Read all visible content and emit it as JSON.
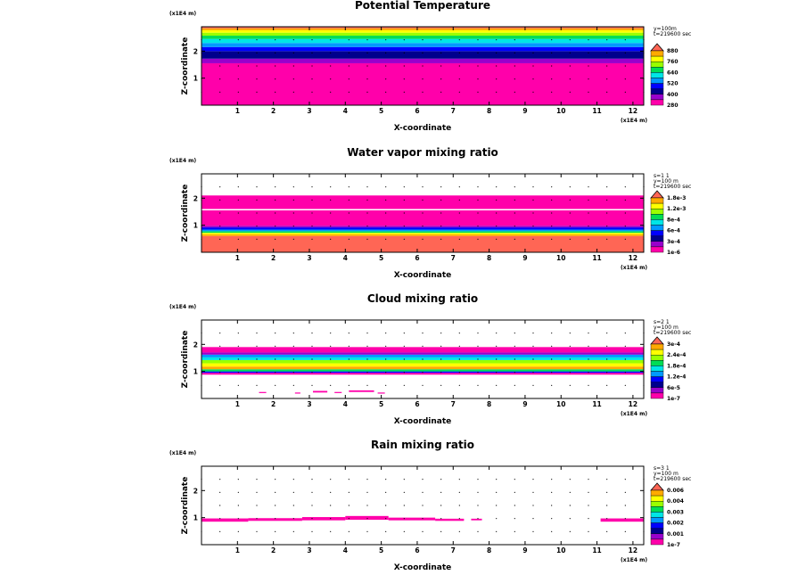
{
  "colors": {
    "magenta": "#ff00aa",
    "purple": "#9900cc",
    "navy": "#00008c",
    "blue": "#0000ff",
    "lightblue": "#0099ff",
    "cyan": "#00e6e6",
    "green": "#00dd55",
    "lime": "#99ff00",
    "yellow": "#ffff00",
    "orange": "#ffaa00",
    "salmon": "#ff6655"
  },
  "chart_data": [
    {
      "type": "heatmap",
      "title": "Potential Temperature",
      "xlabel": "X-coordinate",
      "ylabel": "Z-coordinate",
      "x_unit": "(x1E4 m)",
      "y_unit": "(x1E4 m)",
      "x_ticks": [
        "1",
        "2",
        "3",
        "4",
        "5",
        "6",
        "7",
        "8",
        "9",
        "10",
        "11",
        "12"
      ],
      "y_ticks": [
        "1",
        "2"
      ],
      "xlim": [
        0,
        12.3
      ],
      "ylim": [
        0,
        2.9
      ],
      "annotation": [
        "y=100m",
        "t=219600 sec"
      ],
      "legend_levels": [
        "880",
        "760",
        "640",
        "520",
        "400",
        "280"
      ],
      "legend_colors": [
        "#ff6655",
        "#ffaa00",
        "#ffff00",
        "#99ff00",
        "#00dd55",
        "#00e6e6",
        "#0099ff",
        "#0000ff",
        "#00008c",
        "#9900cc",
        "#ff00aa"
      ],
      "bands": [
        {
          "z0": 0.0,
          "z1": 1.55,
          "color": "#ff00aa"
        },
        {
          "z0": 1.55,
          "z1": 1.72,
          "color": "#9900cc"
        },
        {
          "z0": 1.72,
          "z1": 2.0,
          "color": "#00008c"
        },
        {
          "z0": 2.0,
          "z1": 2.15,
          "color": "#0000ff"
        },
        {
          "z0": 2.15,
          "z1": 2.3,
          "color": "#0099ff"
        },
        {
          "z0": 2.3,
          "z1": 2.45,
          "color": "#00e6e6"
        },
        {
          "z0": 2.45,
          "z1": 2.57,
          "color": "#00dd55"
        },
        {
          "z0": 2.57,
          "z1": 2.68,
          "color": "#99ff00"
        },
        {
          "z0": 2.68,
          "z1": 2.77,
          "color": "#ffff00"
        },
        {
          "z0": 2.77,
          "z1": 2.84,
          "color": "#ffaa00"
        },
        {
          "z0": 2.84,
          "z1": 2.9,
          "color": "#ff6655"
        }
      ]
    },
    {
      "type": "heatmap",
      "title": "Water vapor mixing ratio",
      "xlabel": "X-coordinate",
      "ylabel": "Z-coordinate",
      "x_unit": "(x1E4 m)",
      "y_unit": "(x1E4 m)",
      "x_ticks": [
        "1",
        "2",
        "3",
        "4",
        "5",
        "6",
        "7",
        "8",
        "9",
        "10",
        "11",
        "12"
      ],
      "y_ticks": [
        "1",
        "2"
      ],
      "xlim": [
        0,
        12.3
      ],
      "ylim": [
        0,
        2.9
      ],
      "annotation": [
        "s=1 1",
        "y=100 m",
        "t=219600 sec"
      ],
      "legend_levels": [
        "1.8e-3",
        "1.2e-3",
        "8e-4",
        "6e-4",
        "3e-4",
        "1e-6"
      ],
      "legend_colors": [
        "#ff6655",
        "#ffaa00",
        "#ffff00",
        "#99ff00",
        "#00dd55",
        "#00e6e6",
        "#0099ff",
        "#0000ff",
        "#00008c",
        "#9900cc",
        "#ff00aa"
      ],
      "bands": [
        {
          "z0": 0.0,
          "z1": 0.6,
          "color": "#ff6655"
        },
        {
          "z0": 0.6,
          "z1": 0.66,
          "color": "#ffaa00"
        },
        {
          "z0": 0.66,
          "z1": 0.72,
          "color": "#ffff00"
        },
        {
          "z0": 0.72,
          "z1": 0.78,
          "color": "#00dd55"
        },
        {
          "z0": 0.78,
          "z1": 0.84,
          "color": "#0099ff"
        },
        {
          "z0": 0.84,
          "z1": 0.92,
          "color": "#0000ff"
        },
        {
          "z0": 0.92,
          "z1": 0.98,
          "color": "#9900cc"
        },
        {
          "z0": 0.98,
          "z1": 1.55,
          "color": "#ff00aa"
        },
        {
          "z0": 1.55,
          "z1": 1.6,
          "color": "#ffffff"
        },
        {
          "z0": 1.6,
          "z1": 2.1,
          "color": "#ff00aa"
        }
      ]
    },
    {
      "type": "heatmap",
      "title": "Cloud mixing ratio",
      "xlabel": "X-coordinate",
      "ylabel": "Z-coordinate",
      "x_unit": "(x1E4 m)",
      "y_unit": "(x1E4 m)",
      "x_ticks": [
        "1",
        "2",
        "3",
        "4",
        "5",
        "6",
        "7",
        "8",
        "9",
        "10",
        "11",
        "12"
      ],
      "y_ticks": [
        "1",
        "2"
      ],
      "xlim": [
        0,
        12.3
      ],
      "ylim": [
        0,
        2.9
      ],
      "annotation": [
        "s=2 1",
        "y=100 m",
        "t=219600 sec"
      ],
      "legend_levels": [
        "3e-4",
        "2.4e-4",
        "1.8e-4",
        "1.2e-4",
        "6e-5",
        "1e-7"
      ],
      "legend_colors": [
        "#ff6655",
        "#ffaa00",
        "#ffff00",
        "#99ff00",
        "#00dd55",
        "#00e6e6",
        "#0099ff",
        "#0000ff",
        "#00008c",
        "#9900cc",
        "#ff00aa"
      ],
      "bands": [
        {
          "z0": 0.88,
          "z1": 0.95,
          "color": "#ff00aa"
        },
        {
          "z0": 0.95,
          "z1": 1.0,
          "color": "#0000ff"
        },
        {
          "z0": 1.0,
          "z1": 1.08,
          "color": "#00dd55"
        },
        {
          "z0": 1.08,
          "z1": 1.18,
          "color": "#ffaa00"
        },
        {
          "z0": 1.18,
          "z1": 1.3,
          "color": "#ffff00"
        },
        {
          "z0": 1.3,
          "z1": 1.42,
          "color": "#99ff00"
        },
        {
          "z0": 1.42,
          "z1": 1.52,
          "color": "#00e6e6"
        },
        {
          "z0": 1.52,
          "z1": 1.62,
          "color": "#0099ff"
        },
        {
          "z0": 1.62,
          "z1": 1.7,
          "color": "#9900cc"
        },
        {
          "z0": 1.7,
          "z1": 1.9,
          "color": "#ff00aa"
        }
      ],
      "patches": [
        {
          "x": 1.6,
          "z": 0.2,
          "w": 0.2,
          "h": 0.04,
          "color": "#ff00aa"
        },
        {
          "x": 2.6,
          "z": 0.18,
          "w": 0.15,
          "h": 0.04,
          "color": "#ff00aa"
        },
        {
          "x": 3.1,
          "z": 0.22,
          "w": 0.4,
          "h": 0.06,
          "color": "#ff00aa"
        },
        {
          "x": 3.7,
          "z": 0.2,
          "w": 0.2,
          "h": 0.04,
          "color": "#ff00aa"
        },
        {
          "x": 4.1,
          "z": 0.24,
          "w": 0.7,
          "h": 0.06,
          "color": "#ff00aa"
        },
        {
          "x": 4.9,
          "z": 0.18,
          "w": 0.2,
          "h": 0.04,
          "color": "#ff00aa"
        }
      ]
    },
    {
      "type": "heatmap",
      "title": "Rain mixing ratio",
      "xlabel": "X-coordinate",
      "ylabel": "Z-coordinate",
      "x_unit": "(x1E4 m)",
      "y_unit": "(x1E4 m)",
      "x_ticks": [
        "1",
        "2",
        "3",
        "4",
        "5",
        "6",
        "7",
        "8",
        "9",
        "10",
        "11",
        "12"
      ],
      "y_ticks": [
        "1",
        "2"
      ],
      "xlim": [
        0,
        12.3
      ],
      "ylim": [
        0,
        2.9
      ],
      "annotation": [
        "s=3 1",
        "y=100 m",
        "t=219600 sec"
      ],
      "legend_levels": [
        "0.006",
        "0.004",
        "0.003",
        "0.002",
        "0.001",
        "1e-7"
      ],
      "legend_colors": [
        "#ff6655",
        "#ffaa00",
        "#ffff00",
        "#99ff00",
        "#00dd55",
        "#00e6e6",
        "#0099ff",
        "#0000ff",
        "#00008c",
        "#9900cc",
        "#ff00aa"
      ],
      "bands": [],
      "patches": [
        {
          "x": 0.0,
          "z": 0.85,
          "w": 1.3,
          "h": 0.12,
          "color": "#ff00aa"
        },
        {
          "x": 1.3,
          "z": 0.88,
          "w": 1.5,
          "h": 0.1,
          "color": "#ff00aa"
        },
        {
          "x": 2.8,
          "z": 0.9,
          "w": 1.2,
          "h": 0.12,
          "color": "#ff00aa"
        },
        {
          "x": 4.0,
          "z": 0.92,
          "w": 1.2,
          "h": 0.14,
          "color": "#ff00aa"
        },
        {
          "x": 5.2,
          "z": 0.9,
          "w": 1.3,
          "h": 0.1,
          "color": "#ff00aa"
        },
        {
          "x": 6.5,
          "z": 0.88,
          "w": 0.8,
          "h": 0.08,
          "color": "#ff00aa"
        },
        {
          "x": 7.5,
          "z": 0.9,
          "w": 0.3,
          "h": 0.06,
          "color": "#ff00aa"
        },
        {
          "x": 11.1,
          "z": 0.85,
          "w": 1.2,
          "h": 0.12,
          "color": "#ff00aa"
        }
      ]
    }
  ]
}
